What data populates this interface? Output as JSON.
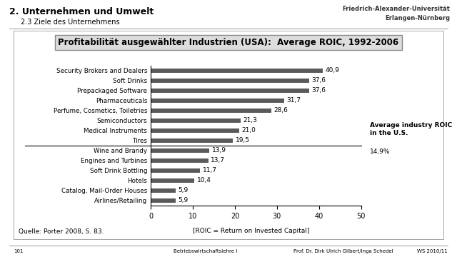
{
  "header": {
    "title": "2. Unternehmen und Umwelt",
    "subtitle": "2.3 Ziele des Unternehmens",
    "university": [
      "Friedrich-Alexander-Universität",
      "Erlangen-Nürnberg"
    ]
  },
  "chart_data": {
    "type": "bar",
    "orientation": "horizontal",
    "title": "Profitabilität ausgewählter Industrien (USA):  Average ROIC, 1992-2006",
    "categories": [
      "Security Brokers and Dealers",
      "Soft Drinks",
      "Prepackaged Software",
      "Pharmaceuticals",
      "Perfume, Cosmetics, Toiletries",
      "Semiconductors",
      "Medical Instruments",
      "Tires",
      "Wine and Brandy",
      "Engines and Turbines",
      "Soft Drink Bottling",
      "Hotels",
      "Catalog, Mail-Order Houses",
      "Airlines/Retailing"
    ],
    "values": [
      40.9,
      37.6,
      37.6,
      31.7,
      28.6,
      21.3,
      21.0,
      19.5,
      13.9,
      13.7,
      11.7,
      10.4,
      5.9,
      5.9
    ],
    "value_labels": [
      "40,9",
      "37,6",
      "37,6",
      "31,7",
      "28,6",
      "21,3",
      "21,0",
      "19,5",
      "13,9",
      "13,7",
      "11,7",
      "10,4",
      "5,9",
      "5,9"
    ],
    "data_labels": true,
    "color": "#5a5a5a",
    "xlim": [
      0,
      50
    ],
    "xticks": [
      0,
      10,
      20,
      30,
      40,
      50
    ],
    "grid": false,
    "xlabel": "[ROIC = Return on Invested Capital]",
    "annotations": [
      {
        "text": "Average industry ROIC in the U.S.",
        "value": 14.9,
        "value_label": "14,9%"
      }
    ],
    "source": "Quelle: Porter 2008, S. 83."
  },
  "footer": {
    "page": "101",
    "course": "Betriebswirtschaftslehre I",
    "author": "Prof. Dr. Dirk Ulrich Gilbert/Inga Schedel",
    "term": "WS 2010/11"
  }
}
